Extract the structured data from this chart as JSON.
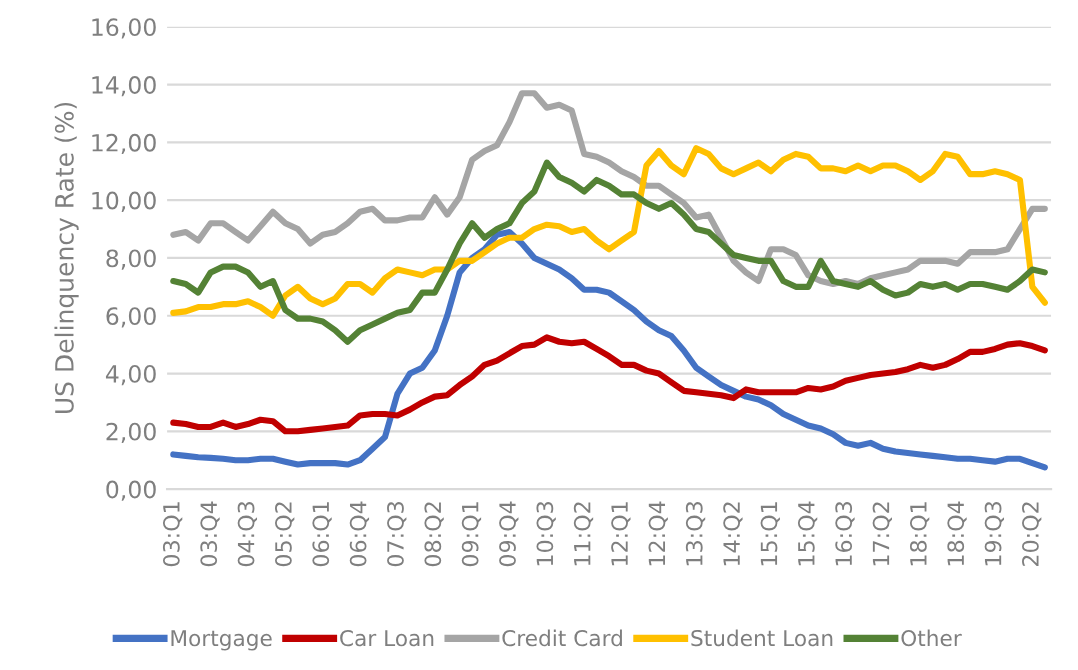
{
  "chart_data": {
    "type": "line",
    "ylabel": "US Delinquency Rate (%)",
    "categories": [
      "03:Q1",
      null,
      null,
      "03:Q4",
      null,
      null,
      "04:Q3",
      null,
      null,
      "05:Q2",
      null,
      null,
      "06:Q1",
      null,
      null,
      "06:Q4",
      null,
      null,
      "07:Q3",
      null,
      null,
      "08:Q2",
      null,
      null,
      "09:Q1",
      null,
      null,
      "09:Q4",
      null,
      null,
      "10:Q3",
      null,
      null,
      "11:Q2",
      null,
      null,
      "12:Q1",
      null,
      null,
      "12:Q4",
      null,
      null,
      "13:Q3",
      null,
      null,
      "14:Q2",
      null,
      null,
      "15:Q1",
      null,
      null,
      "15:Q4",
      null,
      null,
      "16:Q3",
      null,
      null,
      "17:Q2",
      null,
      null,
      "18:Q1",
      null,
      null,
      "18:Q4",
      null,
      null,
      "19:Q3",
      null,
      null,
      "20:Q2",
      null
    ],
    "series": [
      {
        "name": "Mortgage",
        "color": "#4472c4",
        "values": [
          1.2,
          1.15,
          1.1,
          1.08,
          1.05,
          1.0,
          1.0,
          1.05,
          1.05,
          0.95,
          0.85,
          0.9,
          0.9,
          0.9,
          0.85,
          1.0,
          1.4,
          1.8,
          3.3,
          4.0,
          4.2,
          4.8,
          6.0,
          7.5,
          8.0,
          8.3,
          8.8,
          8.9,
          8.5,
          8.0,
          7.8,
          7.6,
          7.3,
          6.9,
          6.9,
          6.8,
          6.5,
          6.2,
          5.8,
          5.5,
          5.3,
          4.8,
          4.2,
          3.9,
          3.6,
          3.4,
          3.2,
          3.1,
          2.9,
          2.6,
          2.4,
          2.2,
          2.1,
          1.9,
          1.6,
          1.5,
          1.6,
          1.4,
          1.3,
          1.25,
          1.2,
          1.15,
          1.1,
          1.05,
          1.05,
          1.0,
          0.95,
          1.05,
          1.05,
          0.9,
          0.75
        ]
      },
      {
        "name": "Car Loan",
        "color": "#c00000",
        "values": [
          2.3,
          2.25,
          2.15,
          2.15,
          2.3,
          2.15,
          2.25,
          2.4,
          2.35,
          2.0,
          2.0,
          2.05,
          2.1,
          2.15,
          2.2,
          2.55,
          2.6,
          2.6,
          2.55,
          2.75,
          3.0,
          3.2,
          3.25,
          3.6,
          3.9,
          4.3,
          4.45,
          4.7,
          4.95,
          5.0,
          5.25,
          5.1,
          5.05,
          5.1,
          4.85,
          4.6,
          4.3,
          4.3,
          4.1,
          4.0,
          3.7,
          3.4,
          3.35,
          3.3,
          3.25,
          3.15,
          3.45,
          3.35,
          3.35,
          3.35,
          3.35,
          3.5,
          3.45,
          3.55,
          3.75,
          3.85,
          3.95,
          4.0,
          4.05,
          4.15,
          4.3,
          4.2,
          4.3,
          4.5,
          4.75,
          4.75,
          4.85,
          5.0,
          5.05,
          4.95,
          4.8
        ]
      },
      {
        "name": "Credit Card",
        "color": "#a5a5a5",
        "values": [
          8.8,
          8.9,
          8.6,
          9.2,
          9.2,
          8.9,
          8.6,
          9.1,
          9.6,
          9.2,
          9.0,
          8.5,
          8.8,
          8.9,
          9.2,
          9.6,
          9.7,
          9.3,
          9.3,
          9.4,
          9.4,
          10.1,
          9.5,
          10.1,
          11.4,
          11.7,
          11.9,
          12.7,
          13.7,
          13.7,
          13.2,
          13.3,
          13.1,
          11.6,
          11.5,
          11.3,
          11.0,
          10.8,
          10.5,
          10.5,
          10.2,
          9.9,
          9.4,
          9.5,
          8.7,
          7.9,
          7.5,
          7.2,
          8.3,
          8.3,
          8.1,
          7.4,
          7.2,
          7.1,
          7.2,
          7.1,
          7.3,
          7.4,
          7.5,
          7.6,
          7.9,
          7.9,
          7.9,
          7.8,
          8.2,
          8.2,
          8.2,
          8.3,
          9.0,
          9.7,
          9.7
        ]
      },
      {
        "name": "Student Loan",
        "color": "#ffc000",
        "values": [
          6.1,
          6.15,
          6.3,
          6.3,
          6.4,
          6.4,
          6.5,
          6.3,
          6.0,
          6.7,
          7.0,
          6.6,
          6.4,
          6.6,
          7.1,
          7.1,
          6.8,
          7.3,
          7.6,
          7.5,
          7.4,
          7.6,
          7.6,
          7.9,
          7.9,
          8.2,
          8.5,
          8.7,
          8.7,
          9.0,
          9.15,
          9.1,
          8.9,
          9.0,
          8.6,
          8.3,
          8.6,
          8.9,
          11.2,
          11.7,
          11.2,
          10.9,
          11.8,
          11.6,
          11.1,
          10.9,
          11.1,
          11.3,
          11.0,
          11.4,
          11.6,
          11.5,
          11.1,
          11.1,
          11.0,
          11.2,
          11.0,
          11.2,
          11.2,
          11.0,
          10.7,
          11.0,
          11.6,
          11.5,
          10.9,
          10.9,
          11.0,
          10.9,
          10.7,
          7.0,
          6.45
        ]
      },
      {
        "name": "Other",
        "color": "#548235",
        "values": [
          7.2,
          7.1,
          6.8,
          7.5,
          7.7,
          7.7,
          7.5,
          7.0,
          7.2,
          6.2,
          5.9,
          5.9,
          5.8,
          5.5,
          5.1,
          5.5,
          5.7,
          5.9,
          6.1,
          6.2,
          6.8,
          6.8,
          7.6,
          8.5,
          9.2,
          8.7,
          9.0,
          9.2,
          9.9,
          10.3,
          11.3,
          10.8,
          10.6,
          10.3,
          10.7,
          10.5,
          10.2,
          10.2,
          9.9,
          9.7,
          9.9,
          9.5,
          9.0,
          8.9,
          8.5,
          8.1,
          8.0,
          7.9,
          7.9,
          7.2,
          7.0,
          7.0,
          7.9,
          7.2,
          7.1,
          7.0,
          7.2,
          6.9,
          6.7,
          6.8,
          7.1,
          7.0,
          7.1,
          6.9,
          7.1,
          7.1,
          7.0,
          6.9,
          7.2,
          7.6,
          7.5
        ]
      }
    ],
    "ylim": [
      0,
      16
    ],
    "yticks": [
      {
        "value": 0,
        "label": "0,00"
      },
      {
        "value": 2,
        "label": "2,00"
      },
      {
        "value": 4,
        "label": "4,00"
      },
      {
        "value": 6,
        "label": "6,00"
      },
      {
        "value": 8,
        "label": "8,00"
      },
      {
        "value": 10,
        "label": "10,00"
      },
      {
        "value": 12,
        "label": "12,00"
      },
      {
        "value": 14,
        "label": "14,00"
      },
      {
        "value": 16,
        "label": "16,00"
      }
    ],
    "grid": "y",
    "legend": "bottom",
    "marker": "none",
    "line_style": "solid"
  }
}
